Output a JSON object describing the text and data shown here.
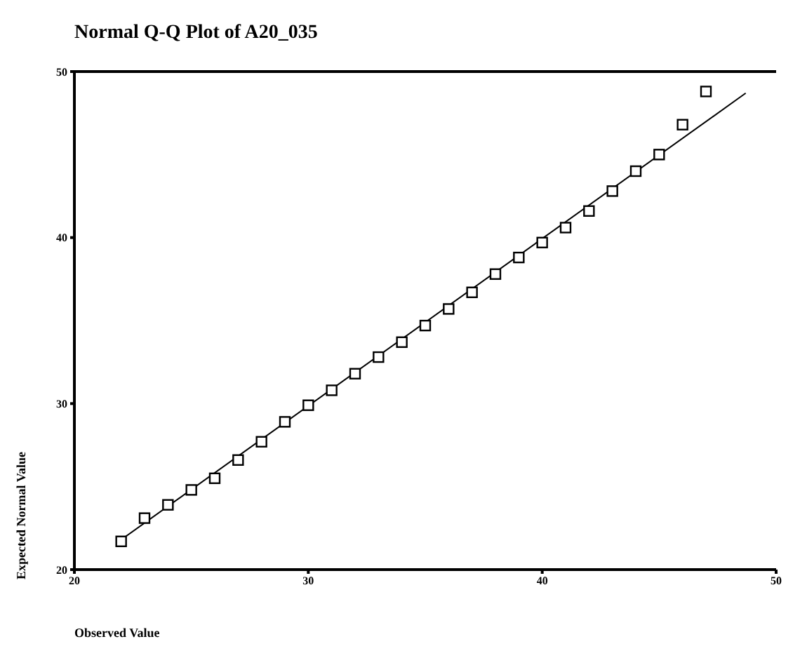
{
  "chart_data": {
    "type": "scatter",
    "title": "Normal Q-Q Plot of A20_035",
    "xlabel": "Observed Value",
    "ylabel": "Expected Normal Value",
    "xlim": [
      20,
      50
    ],
    "xticks": [
      20,
      30,
      40,
      50
    ],
    "ylim": [
      20,
      50
    ],
    "yticks": [
      20,
      30,
      40,
      50
    ],
    "marker": "square",
    "series": [
      {
        "color": "#000000",
        "x": [
          22,
          23,
          24,
          25,
          26,
          27,
          28,
          29,
          30,
          31,
          32,
          33,
          34,
          35,
          36,
          37,
          38,
          39,
          40,
          41,
          42,
          43,
          44,
          45,
          46,
          47
        ],
        "values": [
          21.7,
          23.1,
          23.9,
          24.8,
          25.5,
          26.6,
          27.7,
          28.9,
          29.9,
          30.8,
          31.8,
          32.8,
          33.7,
          34.7,
          35.7,
          36.7,
          37.8,
          38.8,
          39.7,
          40.6,
          41.6,
          42.8,
          44.0,
          45.0,
          46.8,
          48.8
        ]
      },
      {
        "type": "line",
        "color": "#000000",
        "marker": "none",
        "line_style": "solid",
        "x": [
          22,
          48.7
        ],
        "values": [
          21.8,
          48.7
        ]
      }
    ]
  }
}
